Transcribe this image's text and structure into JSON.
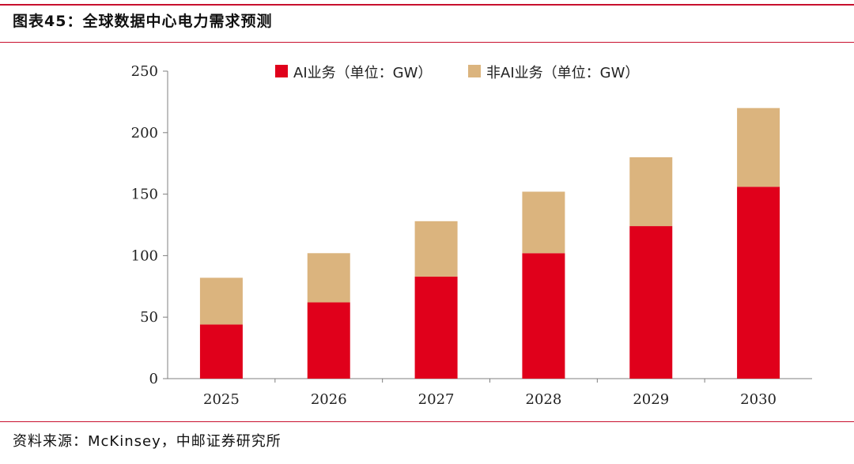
{
  "figure": {
    "title": "图表45：全球数据中心电力需求预测",
    "source": "资料来源：McKinsey，中邮证券研究所",
    "accent_color": "#c8102e"
  },
  "chart_data": {
    "type": "bar",
    "stacked": true,
    "categories": [
      "2025",
      "2026",
      "2027",
      "2028",
      "2029",
      "2030"
    ],
    "series": [
      {
        "name": "AI业务（单位：GW）",
        "color": "#e0001b",
        "values": [
          44,
          62,
          83,
          102,
          124,
          156
        ]
      },
      {
        "name": "非AI业务（单位：GW）",
        "color": "#dbb47e",
        "values": [
          38,
          40,
          45,
          50,
          56,
          64
        ]
      }
    ],
    "ylim": [
      0,
      250
    ],
    "yticks": [
      0,
      50,
      100,
      150,
      200,
      250
    ],
    "xlabel": "",
    "ylabel": "",
    "legend": "top-center",
    "grid": false
  }
}
